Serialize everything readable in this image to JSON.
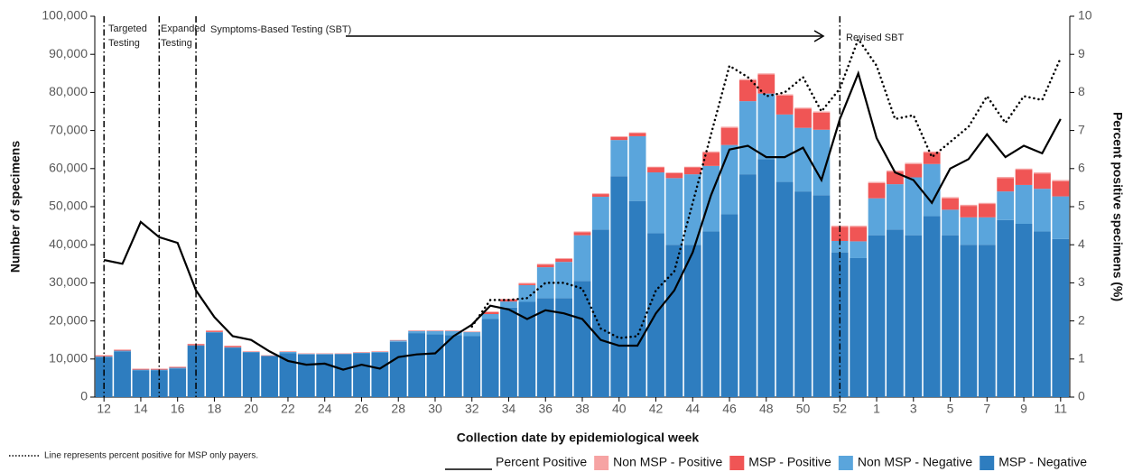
{
  "chart_data": {
    "type": "bar",
    "stacked": true,
    "x_title": "Collection date by epidemiological week",
    "y_title": "Number of specimens",
    "y2_title": "Percent positive specimens (%)",
    "footnote": "Line represents percent positive for MSP only payers.",
    "categories": [
      "12",
      null,
      "14",
      null,
      "16",
      null,
      "18",
      null,
      "20",
      null,
      "22",
      null,
      "24",
      null,
      "26",
      null,
      "28",
      null,
      "30",
      null,
      "32",
      null,
      "34",
      null,
      "36",
      null,
      "38",
      null,
      "40",
      null,
      "42",
      null,
      "44",
      null,
      "46",
      null,
      "48",
      null,
      "50",
      null,
      "52",
      null,
      "1",
      null,
      "3",
      null,
      "5",
      null,
      "7",
      null,
      "9",
      null,
      "11"
    ],
    "ylim": [
      0,
      100000
    ],
    "yticks": [
      0,
      {
        "value": 10000,
        "label": "10,000"
      },
      {
        "value": 20000,
        "label": "20,000"
      },
      {
        "value": 30000,
        "label": "30,000"
      },
      {
        "value": 40000,
        "label": "40,000"
      },
      {
        "value": 50000,
        "label": "50,000"
      },
      {
        "value": 60000,
        "label": "60,000"
      },
      {
        "value": 70000,
        "label": "70,000"
      },
      {
        "value": 80000,
        "label": "80,000"
      },
      {
        "value": 90000,
        "label": "90,000"
      },
      {
        "value": 100000,
        "label": "100,000"
      }
    ],
    "y2lim": [
      0,
      10
    ],
    "y2ticks": [
      0,
      1,
      2,
      3,
      4,
      5,
      6,
      7,
      8,
      9,
      10
    ],
    "series": [
      {
        "name": "Non MSP - Positive",
        "color": "#f6a3a3",
        "values": [
          100,
          100,
          100,
          100,
          100,
          100,
          100,
          100,
          50,
          50,
          50,
          50,
          50,
          50,
          50,
          50,
          50,
          50,
          50,
          50,
          50,
          200,
          200,
          200,
          200,
          200,
          200,
          200,
          200,
          200,
          200,
          200,
          200,
          300,
          300,
          300,
          300,
          300,
          300,
          300,
          300,
          300,
          300,
          300,
          300,
          300,
          300,
          300,
          300,
          300,
          300,
          300,
          300
        ]
      },
      {
        "name": "MSP - Positive",
        "color": "#f05555",
        "values": [
          200,
          200,
          200,
          200,
          200,
          300,
          300,
          300,
          100,
          100,
          100,
          100,
          100,
          100,
          100,
          100,
          100,
          100,
          100,
          100,
          100,
          500,
          500,
          400,
          700,
          800,
          800,
          700,
          800,
          800,
          1300,
          1300,
          1800,
          3500,
          4500,
          5500,
          5000,
          5000,
          5000,
          4500,
          3700,
          3800,
          4000,
          3300,
          3500,
          3000,
          3000,
          3000,
          3500,
          3500,
          4000,
          4000,
          4000
        ]
      },
      {
        "name": "Non MSP - Negative",
        "color": "#5aa5dc",
        "values": [
          200,
          200,
          200,
          200,
          200,
          100,
          100,
          100,
          50,
          50,
          350,
          150,
          150,
          50,
          150,
          150,
          350,
          550,
          850,
          1050,
          1050,
          1300,
          1600,
          4400,
          8100,
          9500,
          12000,
          8600,
          9500,
          17000,
          16000,
          17500,
          18500,
          17200,
          18200,
          19200,
          17200,
          17700,
          16700,
          17200,
          3000,
          4400,
          9700,
          11900,
          15200,
          13700,
          6700,
          7200,
          7200,
          7500,
          10200,
          11200,
          11200
        ]
      },
      {
        "name": "MSP - Negative",
        "color": "#2e7dbf",
        "values": [
          10500,
          12000,
          7000,
          7000,
          7500,
          13500,
          17000,
          13000,
          11800,
          10800,
          11500,
          11200,
          11200,
          11300,
          11500,
          11700,
          14500,
          16800,
          16500,
          16300,
          16000,
          20500,
          23500,
          25000,
          26000,
          26000,
          30500,
          44000,
          58000,
          51500,
          43000,
          40000,
          40000,
          43500,
          48000,
          58500,
          62500,
          56500,
          54000,
          53000,
          38000,
          36500,
          42500,
          44000,
          42500,
          47500,
          42500,
          40000,
          40000,
          46500,
          45500,
          43500,
          41500
        ]
      }
    ],
    "lines": [
      {
        "name": "Percent Positive",
        "color": "#000000",
        "dash": "solid",
        "axis": "y2",
        "values": [
          3.6,
          3.5,
          4.6,
          4.2,
          4.05,
          2.8,
          2.1,
          1.6,
          1.5,
          1.2,
          0.95,
          0.85,
          0.88,
          0.72,
          0.85,
          0.75,
          1.05,
          1.12,
          1.15,
          1.6,
          1.9,
          2.4,
          2.3,
          2.05,
          2.28,
          2.2,
          2.05,
          1.5,
          1.35,
          1.35,
          2.2,
          2.8,
          3.8,
          5.3,
          6.5,
          6.6,
          6.3,
          6.3,
          6.55,
          5.7,
          7.3,
          8.5,
          6.8,
          5.9,
          5.7,
          5.1,
          6.0,
          6.25,
          6.9,
          6.3,
          6.6,
          6.4,
          7.3
        ]
      },
      {
        "color": "#000000",
        "dash": "dotted",
        "axis": "y2",
        "values": [
          null,
          null,
          null,
          null,
          null,
          null,
          null,
          null,
          null,
          null,
          null,
          null,
          null,
          null,
          null,
          null,
          null,
          null,
          null,
          null,
          1.85,
          2.55,
          2.55,
          2.6,
          3.0,
          3.0,
          2.85,
          1.8,
          1.55,
          1.6,
          2.8,
          3.3,
          5.1,
          6.9,
          8.7,
          8.4,
          7.9,
          8.0,
          8.4,
          7.5,
          8.1,
          9.4,
          8.7,
          7.3,
          7.4,
          6.3,
          6.7,
          7.1,
          7.9,
          7.2,
          7.9,
          7.8,
          8.9
        ]
      }
    ],
    "annotations": [
      {
        "lines": [
          "Targeted",
          "Testing"
        ]
      },
      {
        "lines": [
          "Expanded",
          "Testing"
        ]
      },
      {
        "lines": [
          "Symptoms-Based Testing (SBT)"
        ]
      },
      {
        "lines": [
          "Revised SBT"
        ]
      }
    ]
  }
}
